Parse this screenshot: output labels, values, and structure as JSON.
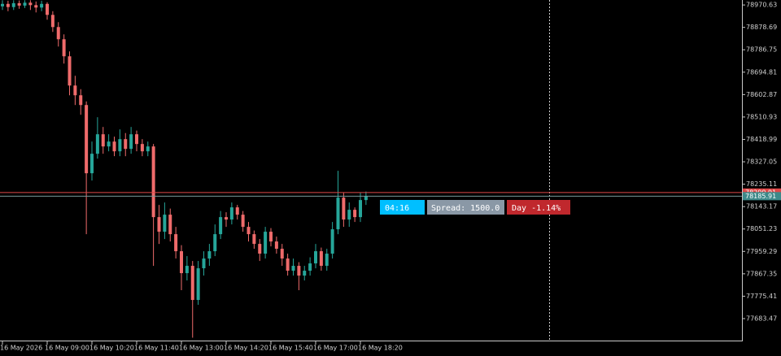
{
  "chart_data": {
    "type": "candlestick",
    "up_color": "#26a69a",
    "down_color": "#ef6b6b",
    "ylim": [
      77590,
      78991
    ],
    "yticks": [
      78970.63,
      78878.69,
      78786.75,
      78694.81,
      78602.87,
      78510.93,
      78418.99,
      78327.05,
      78235.11,
      78143.17,
      78051.23,
      77959.29,
      77867.35,
      77775.41,
      77683.47
    ],
    "xticks": [
      {
        "value": 0,
        "label": "16 May 2026"
      },
      {
        "value": 8,
        "label": "16 May 09:00"
      },
      {
        "value": 16,
        "label": "16 May 10:20"
      },
      {
        "value": 24,
        "label": "16 May 11:40"
      },
      {
        "value": 32,
        "label": "16 May 13:00"
      },
      {
        "value": 40,
        "label": "16 May 14:20"
      },
      {
        "value": 48,
        "label": "16 May 15:40"
      },
      {
        "value": 56,
        "label": "16 May 17:00"
      },
      {
        "value": 64,
        "label": "16 May 18:20"
      }
    ],
    "open": [
      78965,
      78975,
      78962,
      78978,
      78968,
      78980,
      78970,
      78960,
      78975,
      78930,
      78880,
      78830,
      78760,
      78640,
      78600,
      78560,
      78280,
      78360,
      78440,
      78390,
      78410,
      78370,
      78420,
      78380,
      78440,
      78400,
      78370,
      78390,
      78100,
      78040,
      78110,
      78030,
      77960,
      77870,
      77900,
      77760,
      77890,
      77930,
      77960,
      78030,
      78100,
      78090,
      78140,
      78110,
      78060,
      78030,
      77990,
      77950,
      78040,
      78000,
      77970,
      77930,
      77880,
      77900,
      77860,
      77880,
      77910,
      77960,
      77900,
      77950,
      78050,
      78180,
      78090,
      78130,
      78100,
      78170
    ],
    "high": [
      78990,
      78988,
      78990,
      78989,
      78990,
      78990,
      78985,
      78988,
      78982,
      78945,
      78900,
      78850,
      78780,
      78680,
      78625,
      78575,
      78410,
      78510,
      78470,
      78440,
      78430,
      78460,
      78445,
      78470,
      78455,
      78420,
      78410,
      78400,
      78150,
      78160,
      78135,
      78060,
      77985,
      77940,
      77920,
      77920,
      77960,
      77990,
      78070,
      78125,
      78120,
      78160,
      78150,
      78125,
      78080,
      78045,
      78010,
      78060,
      78055,
      78020,
      77990,
      77950,
      77930,
      77915,
      77900,
      77935,
      77990,
      77975,
      77970,
      78080,
      78290,
      78200,
      78160,
      78140,
      78200,
      78205
    ],
    "low": [
      78950,
      78945,
      78950,
      78955,
      78958,
      78950,
      78940,
      78945,
      78910,
      78860,
      78800,
      78730,
      78600,
      78560,
      78520,
      78030,
      78250,
      78340,
      78360,
      78370,
      78350,
      78350,
      78350,
      78360,
      78370,
      78350,
      78350,
      77900,
      77990,
      78010,
      78000,
      77930,
      77800,
      77840,
      77605,
      77740,
      77860,
      77900,
      77940,
      78010,
      78060,
      78070,
      78090,
      78040,
      78000,
      77970,
      77920,
      77930,
      77980,
      77950,
      77900,
      77860,
      77860,
      77800,
      77840,
      77860,
      77890,
      77880,
      77880,
      77930,
      78030,
      78060,
      78060,
      78080,
      78080,
      78150
    ],
    "close": [
      78975,
      78962,
      78978,
      78968,
      78980,
      78970,
      78960,
      78975,
      78930,
      78880,
      78830,
      78760,
      78640,
      78600,
      78560,
      78280,
      78360,
      78440,
      78390,
      78410,
      78370,
      78420,
      78380,
      78440,
      78400,
      78370,
      78390,
      78100,
      78040,
      78110,
      78030,
      77960,
      77870,
      77900,
      77760,
      77890,
      77930,
      77960,
      78030,
      78100,
      78090,
      78140,
      78110,
      78060,
      78030,
      77990,
      77950,
      78040,
      78000,
      77970,
      77930,
      77880,
      77900,
      77860,
      77880,
      77910,
      77960,
      77900,
      77950,
      78050,
      78180,
      78090,
      78130,
      78100,
      78170,
      78185.91
    ],
    "bid": 78185.91,
    "ask": 78200.91,
    "annotations": [
      "04:16",
      "Spread: 1500.0",
      "Day -1.14%"
    ]
  }
}
